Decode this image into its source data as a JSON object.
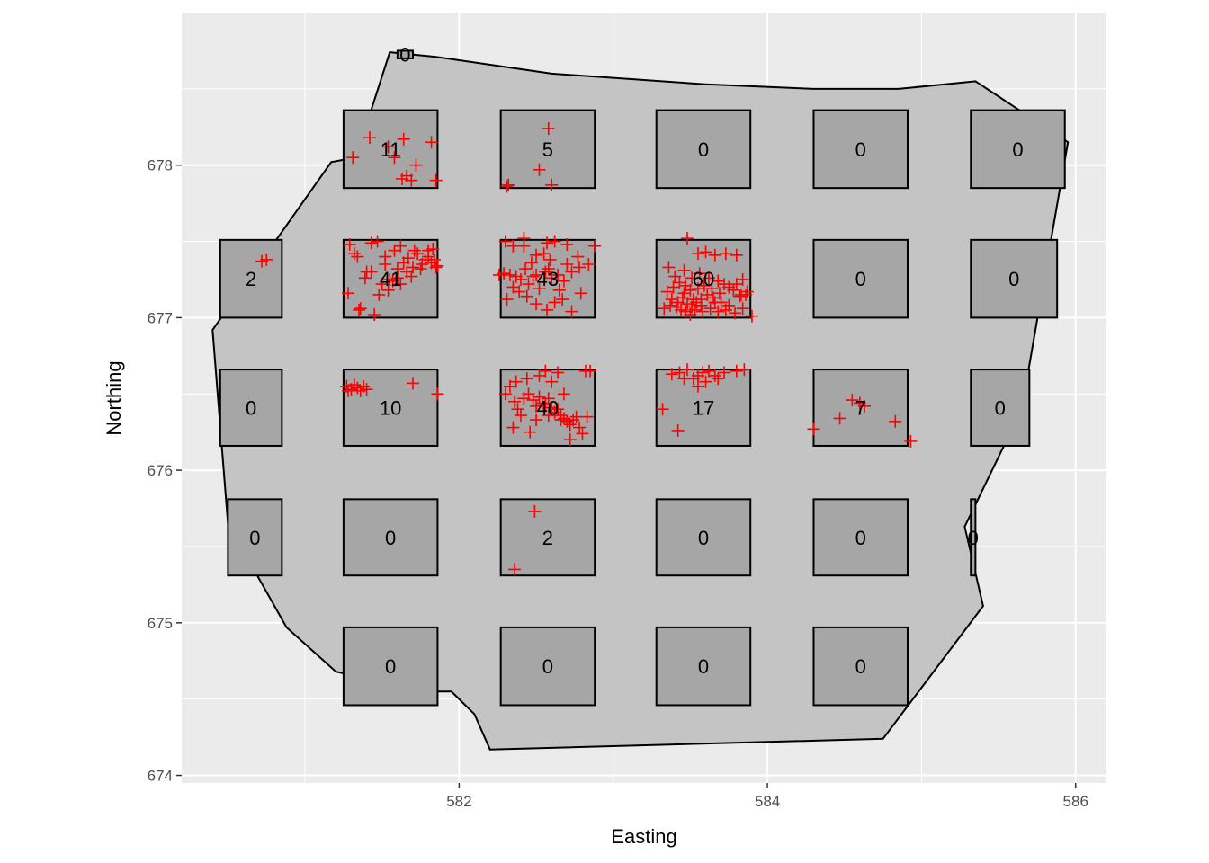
{
  "chart_data": {
    "type": "map",
    "xlabel": "Easting",
    "ylabel": "Northing",
    "xlim": [
      580.2,
      586.2
    ],
    "ylim": [
      673.95,
      679.0
    ],
    "x_ticks": [
      582,
      584,
      586
    ],
    "x_minor_ticks": [
      581,
      583,
      585
    ],
    "y_ticks": [
      674,
      675,
      676,
      677,
      678
    ],
    "y_minor_ticks": [
      674.5,
      675.5,
      676.5,
      677.5,
      678.5
    ],
    "grid": true,
    "colors": {
      "panel": "#ebebeb",
      "grid": "#ffffff",
      "region_fill": "#c4c4c4",
      "quadrat_fill": "#a6a6a6",
      "points": "#ff0000",
      "outline": "#000000"
    },
    "boundary": [
      [
        581.55,
        678.74
      ],
      [
        581.85,
        678.71
      ],
      [
        582.6,
        678.6
      ],
      [
        583.6,
        678.53
      ],
      [
        584.3,
        678.5
      ],
      [
        584.85,
        678.5
      ],
      [
        585.35,
        678.55
      ],
      [
        585.95,
        678.15
      ],
      [
        585.65,
        676.4
      ],
      [
        585.28,
        675.63
      ],
      [
        585.4,
        675.11
      ],
      [
        584.75,
        674.24
      ],
      [
        582.2,
        674.17
      ],
      [
        582.1,
        674.4
      ],
      [
        581.95,
        674.55
      ],
      [
        581.75,
        674.55
      ],
      [
        581.2,
        674.68
      ],
      [
        580.88,
        674.97
      ],
      [
        580.5,
        675.65
      ],
      [
        580.4,
        676.92
      ],
      [
        581.17,
        678.02
      ],
      [
        581.33,
        678.05
      ]
    ],
    "quadrats": [
      {
        "x": [
          581.25,
          581.86
        ],
        "y": [
          677.85,
          678.36
        ],
        "count": "11"
      },
      {
        "x": [
          582.27,
          582.88
        ],
        "y": [
          677.85,
          678.36
        ],
        "count": "5"
      },
      {
        "x": [
          583.28,
          583.89
        ],
        "y": [
          677.85,
          678.36
        ],
        "count": "0"
      },
      {
        "x": [
          584.3,
          584.91
        ],
        "y": [
          677.85,
          678.36
        ],
        "count": "0"
      },
      {
        "x": [
          585.32,
          585.93
        ],
        "y": [
          677.85,
          678.36
        ],
        "count": "0"
      },
      {
        "x": [
          580.45,
          580.85
        ],
        "y": [
          677.0,
          677.51
        ],
        "count": "2"
      },
      {
        "x": [
          581.25,
          581.86
        ],
        "y": [
          677.0,
          677.51
        ],
        "count": "41"
      },
      {
        "x": [
          582.27,
          582.88
        ],
        "y": [
          677.0,
          677.51
        ],
        "count": "43"
      },
      {
        "x": [
          583.28,
          583.89
        ],
        "y": [
          677.0,
          677.51
        ],
        "count": "60"
      },
      {
        "x": [
          584.3,
          584.91
        ],
        "y": [
          677.0,
          677.51
        ],
        "count": "0"
      },
      {
        "x": [
          585.32,
          585.88
        ],
        "y": [
          677.0,
          677.51
        ],
        "count": "0"
      },
      {
        "x": [
          580.45,
          580.85
        ],
        "y": [
          676.16,
          676.66
        ],
        "count": "0"
      },
      {
        "x": [
          581.25,
          581.86
        ],
        "y": [
          676.16,
          676.66
        ],
        "count": "10"
      },
      {
        "x": [
          582.27,
          582.88
        ],
        "y": [
          676.16,
          676.66
        ],
        "count": "40"
      },
      {
        "x": [
          583.28,
          583.89
        ],
        "y": [
          676.16,
          676.66
        ],
        "count": "17"
      },
      {
        "x": [
          584.3,
          584.91
        ],
        "y": [
          676.16,
          676.66
        ],
        "count": "7"
      },
      {
        "x": [
          585.32,
          585.7
        ],
        "y": [
          676.16,
          676.66
        ],
        "count": "0"
      },
      {
        "x": [
          580.5,
          580.85
        ],
        "y": [
          675.31,
          675.81
        ],
        "count": "0"
      },
      {
        "x": [
          581.25,
          581.86
        ],
        "y": [
          675.31,
          675.81
        ],
        "count": "0"
      },
      {
        "x": [
          582.27,
          582.88
        ],
        "y": [
          675.31,
          675.81
        ],
        "count": "2"
      },
      {
        "x": [
          583.28,
          583.89
        ],
        "y": [
          675.31,
          675.81
        ],
        "count": "0"
      },
      {
        "x": [
          584.3,
          584.91
        ],
        "y": [
          675.31,
          675.81
        ],
        "count": "0"
      },
      {
        "x": [
          585.32,
          585.35
        ],
        "y": [
          675.31,
          675.81
        ],
        "count": "0"
      },
      {
        "x": [
          581.25,
          581.86
        ],
        "y": [
          674.46,
          674.97
        ],
        "count": "0"
      },
      {
        "x": [
          582.27,
          582.88
        ],
        "y": [
          674.46,
          674.97
        ],
        "count": "0"
      },
      {
        "x": [
          583.28,
          583.89
        ],
        "y": [
          674.46,
          674.97
        ],
        "count": "0"
      },
      {
        "x": [
          584.3,
          584.91
        ],
        "y": [
          674.46,
          674.97
        ],
        "count": "0"
      },
      {
        "x": [
          581.6,
          581.7
        ],
        "y": [
          678.7,
          678.75
        ],
        "count": "0"
      }
    ],
    "points": [
      [
        581.42,
        678.18
      ],
      [
        581.54,
        678.12
      ],
      [
        581.64,
        678.17
      ],
      [
        581.82,
        678.15
      ],
      [
        581.72,
        678.0
      ],
      [
        581.58,
        678.05
      ],
      [
        581.31,
        678.05
      ],
      [
        581.66,
        677.93
      ],
      [
        581.69,
        677.9
      ],
      [
        581.85,
        677.9
      ],
      [
        581.63,
        677.91
      ],
      [
        582.58,
        678.24
      ],
      [
        582.52,
        677.97
      ],
      [
        582.6,
        677.87
      ],
      [
        582.32,
        677.87
      ],
      [
        582.31,
        677.86
      ],
      [
        580.75,
        677.38
      ],
      [
        580.72,
        677.37
      ],
      [
        581.29,
        677.48
      ],
      [
        581.34,
        677.4
      ],
      [
        581.4,
        677.3
      ],
      [
        581.43,
        677.3
      ],
      [
        581.47,
        677.5
      ],
      [
        581.52,
        677.4
      ],
      [
        581.55,
        677.25
      ],
      [
        581.6,
        677.32
      ],
      [
        581.62,
        677.47
      ],
      [
        581.67,
        677.39
      ],
      [
        581.73,
        677.42
      ],
      [
        581.78,
        677.38
      ],
      [
        581.82,
        677.36
      ],
      [
        581.85,
        677.33
      ],
      [
        581.28,
        677.16
      ],
      [
        581.36,
        677.06
      ],
      [
        581.48,
        677.15
      ],
      [
        581.5,
        677.22
      ],
      [
        581.57,
        677.24
      ],
      [
        581.6,
        677.26
      ],
      [
        581.66,
        677.3
      ],
      [
        581.7,
        677.33
      ],
      [
        581.76,
        677.35
      ],
      [
        581.8,
        677.4
      ],
      [
        581.83,
        677.45
      ],
      [
        581.45,
        677.02
      ],
      [
        581.54,
        677.18
      ],
      [
        581.35,
        677.05
      ],
      [
        581.32,
        677.42
      ],
      [
        581.43,
        677.49
      ],
      [
        581.58,
        677.44
      ],
      [
        581.64,
        677.36
      ],
      [
        581.71,
        677.44
      ],
      [
        581.75,
        677.32
      ],
      [
        581.86,
        677.34
      ],
      [
        581.39,
        677.26
      ],
      [
        581.52,
        677.35
      ],
      [
        581.62,
        677.22
      ],
      [
        581.69,
        677.27
      ],
      [
        581.8,
        677.44
      ],
      [
        581.84,
        677.38
      ],
      [
        582.3,
        677.5
      ],
      [
        582.35,
        677.47
      ],
      [
        582.42,
        677.52
      ],
      [
        582.5,
        677.41
      ],
      [
        582.57,
        677.49
      ],
      [
        582.62,
        677.5
      ],
      [
        582.7,
        677.48
      ],
      [
        582.77,
        677.4
      ],
      [
        582.84,
        677.35
      ],
      [
        582.88,
        677.47
      ],
      [
        582.29,
        677.29
      ],
      [
        582.33,
        677.28
      ],
      [
        582.37,
        677.27
      ],
      [
        582.4,
        677.25
      ],
      [
        582.45,
        677.22
      ],
      [
        582.5,
        677.28
      ],
      [
        582.56,
        677.3
      ],
      [
        582.6,
        677.26
      ],
      [
        582.64,
        677.28
      ],
      [
        582.68,
        677.24
      ],
      [
        582.73,
        677.3
      ],
      [
        582.78,
        677.33
      ],
      [
        582.31,
        677.12
      ],
      [
        582.39,
        677.17
      ],
      [
        582.44,
        677.14
      ],
      [
        582.5,
        677.09
      ],
      [
        582.57,
        677.05
      ],
      [
        582.62,
        677.1
      ],
      [
        582.67,
        677.12
      ],
      [
        582.73,
        677.04
      ],
      [
        582.79,
        677.16
      ],
      [
        582.43,
        677.32
      ],
      [
        582.47,
        677.36
      ],
      [
        582.55,
        677.42
      ],
      [
        582.59,
        677.38
      ],
      [
        582.52,
        677.19
      ],
      [
        582.35,
        677.2
      ],
      [
        582.65,
        677.18
      ],
      [
        582.7,
        677.35
      ],
      [
        582.26,
        677.28
      ],
      [
        582.48,
        677.27
      ],
      [
        582.58,
        677.32
      ],
      [
        582.42,
        677.47
      ],
      [
        583.48,
        677.52
      ],
      [
        583.55,
        677.42
      ],
      [
        583.6,
        677.43
      ],
      [
        583.66,
        677.41
      ],
      [
        583.73,
        677.42
      ],
      [
        583.8,
        677.41
      ],
      [
        583.36,
        677.33
      ],
      [
        583.4,
        677.27
      ],
      [
        583.46,
        677.31
      ],
      [
        583.51,
        677.26
      ],
      [
        583.56,
        677.29
      ],
      [
        583.62,
        677.26
      ],
      [
        583.68,
        677.24
      ],
      [
        583.75,
        677.2
      ],
      [
        583.8,
        677.22
      ],
      [
        583.84,
        677.25
      ],
      [
        583.87,
        677.17
      ],
      [
        583.35,
        677.17
      ],
      [
        583.38,
        677.12
      ],
      [
        583.42,
        677.1
      ],
      [
        583.45,
        677.13
      ],
      [
        583.48,
        677.09
      ],
      [
        583.51,
        677.07
      ],
      [
        583.54,
        677.1
      ],
      [
        583.57,
        677.12
      ],
      [
        583.61,
        677.15
      ],
      [
        583.65,
        677.13
      ],
      [
        583.7,
        677.1
      ],
      [
        583.75,
        677.08
      ],
      [
        583.82,
        677.14
      ],
      [
        583.86,
        677.15
      ],
      [
        583.33,
        677.06
      ],
      [
        583.37,
        677.08
      ],
      [
        583.41,
        677.07
      ],
      [
        583.44,
        677.05
      ],
      [
        583.47,
        677.04
      ],
      [
        583.5,
        677.02
      ],
      [
        583.53,
        677.05
      ],
      [
        583.58,
        677.04
      ],
      [
        583.63,
        677.06
      ],
      [
        583.68,
        677.04
      ],
      [
        583.73,
        677.05
      ],
      [
        583.79,
        677.03
      ],
      [
        583.84,
        677.06
      ],
      [
        583.9,
        677.01
      ],
      [
        583.39,
        677.2
      ],
      [
        583.43,
        677.23
      ],
      [
        583.47,
        677.21
      ],
      [
        583.5,
        677.18
      ],
      [
        583.55,
        677.19
      ],
      [
        583.59,
        677.21
      ],
      [
        583.64,
        677.19
      ],
      [
        583.69,
        677.16
      ],
      [
        583.72,
        677.22
      ],
      [
        583.78,
        677.18
      ],
      [
        583.83,
        677.15
      ],
      [
        583.46,
        677.16
      ],
      [
        583.52,
        677.12
      ],
      [
        583.57,
        677.08
      ],
      [
        583.66,
        677.1
      ],
      [
        581.27,
        676.55
      ],
      [
        581.3,
        676.53
      ],
      [
        581.32,
        676.56
      ],
      [
        581.34,
        676.54
      ],
      [
        581.36,
        676.52
      ],
      [
        581.38,
        676.55
      ],
      [
        581.4,
        676.53
      ],
      [
        581.7,
        676.57
      ],
      [
        581.86,
        676.5
      ],
      [
        581.28,
        676.52
      ],
      [
        582.3,
        676.5
      ],
      [
        582.33,
        676.55
      ],
      [
        582.36,
        676.45
      ],
      [
        582.38,
        676.4
      ],
      [
        582.4,
        676.36
      ],
      [
        582.42,
        676.47
      ],
      [
        582.45,
        676.5
      ],
      [
        582.48,
        676.46
      ],
      [
        582.5,
        676.42
      ],
      [
        582.52,
        676.48
      ],
      [
        582.54,
        676.44
      ],
      [
        582.56,
        676.43
      ],
      [
        582.58,
        676.47
      ],
      [
        582.6,
        676.41
      ],
      [
        582.62,
        676.38
      ],
      [
        582.64,
        676.4
      ],
      [
        582.66,
        676.36
      ],
      [
        582.68,
        676.34
      ],
      [
        582.7,
        676.32
      ],
      [
        582.72,
        676.3
      ],
      [
        582.74,
        676.33
      ],
      [
        582.76,
        676.35
      ],
      [
        582.78,
        676.28
      ],
      [
        582.8,
        676.24
      ],
      [
        582.83,
        676.35
      ],
      [
        582.35,
        676.28
      ],
      [
        582.56,
        676.65
      ],
      [
        582.64,
        676.64
      ],
      [
        582.82,
        676.65
      ],
      [
        582.85,
        676.65
      ],
      [
        582.37,
        676.58
      ],
      [
        582.44,
        676.6
      ],
      [
        582.52,
        676.62
      ],
      [
        582.6,
        676.58
      ],
      [
        582.68,
        676.5
      ],
      [
        582.72,
        676.2
      ],
      [
        582.5,
        676.33
      ],
      [
        582.58,
        676.36
      ],
      [
        582.66,
        676.33
      ],
      [
        582.46,
        676.25
      ],
      [
        583.38,
        676.63
      ],
      [
        583.43,
        676.64
      ],
      [
        583.48,
        676.66
      ],
      [
        583.52,
        676.6
      ],
      [
        583.55,
        676.62
      ],
      [
        583.58,
        676.64
      ],
      [
        583.62,
        676.65
      ],
      [
        583.66,
        676.62
      ],
      [
        583.72,
        676.64
      ],
      [
        583.8,
        676.65
      ],
      [
        583.85,
        676.66
      ],
      [
        583.32,
        676.4
      ],
      [
        583.42,
        676.26
      ],
      [
        583.55,
        676.55
      ],
      [
        583.6,
        676.58
      ],
      [
        583.68,
        676.6
      ],
      [
        583.46,
        676.6
      ],
      [
        584.3,
        676.27
      ],
      [
        584.47,
        676.34
      ],
      [
        584.55,
        676.46
      ],
      [
        584.63,
        676.42
      ],
      [
        584.83,
        676.32
      ],
      [
        584.93,
        676.19
      ],
      [
        584.6,
        676.44
      ],
      [
        582.49,
        675.73
      ],
      [
        582.36,
        675.35
      ]
    ]
  }
}
